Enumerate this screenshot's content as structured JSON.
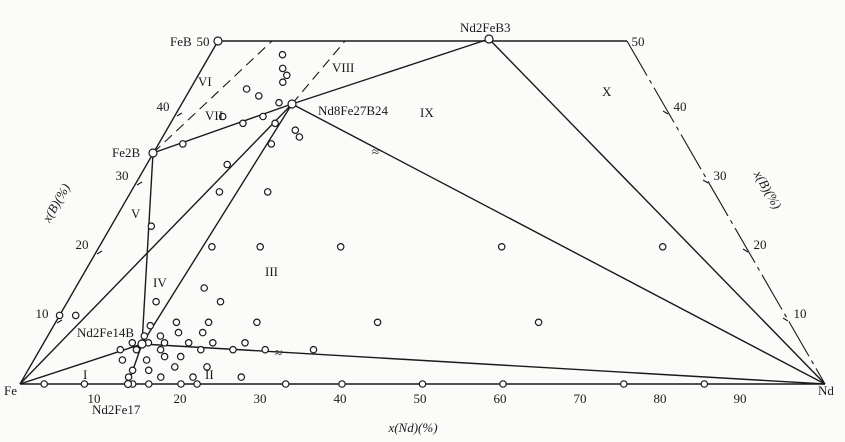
{
  "chart_data": {
    "type": "scatter",
    "title": "",
    "xlabel": "x(Nd)(%)",
    "ylabel_left": "x(B)(%)",
    "ylabel_right": "x(B)(%)",
    "x_ticks": [
      "10",
      "20",
      "30",
      "40",
      "50",
      "60",
      "70",
      "80",
      "90"
    ],
    "left_ticks": [
      "10",
      "20",
      "30",
      "40"
    ],
    "left_top_tick": "50",
    "right_ticks": [
      "10",
      "20",
      "30",
      "40"
    ],
    "right_top_tick": "50",
    "corners": {
      "fe": "Fe",
      "nd": "Nd"
    },
    "phases": {
      "feb": "FeB",
      "fe2b": "Fe2B",
      "nd2feb3": "Nd2FeB3",
      "nd8fe27b24": "Nd8Fe27B24",
      "nd2fe14b": "Nd2Fe14B",
      "nd2fe17": "Nd2Fe17"
    },
    "regions": [
      "I",
      "II",
      "III",
      "IV",
      "V",
      "VI",
      "VII",
      "VIII",
      "IX",
      "X"
    ],
    "phase_points": [
      {
        "x": 0,
        "y": 50
      },
      {
        "x": 0,
        "y": 33.3
      },
      {
        "x": 33.3,
        "y": 50
      },
      {
        "x": 13.8,
        "y": 5.9
      },
      {
        "x": 10.5,
        "y": 0
      },
      {
        "x": 14,
        "y": 41
      }
    ],
    "sample_points": [
      {
        "x": 3,
        "y": 0
      },
      {
        "x": 8,
        "y": 0
      },
      {
        "x": 14,
        "y": 0
      },
      {
        "x": 16,
        "y": 0
      },
      {
        "x": 20,
        "y": 0
      },
      {
        "x": 22,
        "y": 0
      },
      {
        "x": 33,
        "y": 0
      },
      {
        "x": 40,
        "y": 0
      },
      {
        "x": 50,
        "y": 0
      },
      {
        "x": 60,
        "y": 0
      },
      {
        "x": 75,
        "y": 0
      },
      {
        "x": 85,
        "y": 0
      },
      {
        "x": 13,
        "y": 1
      },
      {
        "x": 17,
        "y": 1
      },
      {
        "x": 21,
        "y": 1
      },
      {
        "x": 27,
        "y": 1
      },
      {
        "x": 13,
        "y": 2
      },
      {
        "x": 15,
        "y": 2
      },
      {
        "x": 18,
        "y": 2.5
      },
      {
        "x": 22,
        "y": 2.5
      },
      {
        "x": 11,
        "y": 3.5
      },
      {
        "x": 14,
        "y": 3.5
      },
      {
        "x": 16,
        "y": 4
      },
      {
        "x": 18,
        "y": 4
      },
      {
        "x": 10,
        "y": 5
      },
      {
        "x": 12,
        "y": 5
      },
      {
        "x": 15,
        "y": 5
      },
      {
        "x": 20,
        "y": 5
      },
      {
        "x": 24,
        "y": 5
      },
      {
        "x": 28,
        "y": 5
      },
      {
        "x": 34,
        "y": 5
      },
      {
        "x": 11,
        "y": 6
      },
      {
        "x": 13,
        "y": 6
      },
      {
        "x": 15,
        "y": 6
      },
      {
        "x": 18,
        "y": 6
      },
      {
        "x": 21,
        "y": 6
      },
      {
        "x": 25,
        "y": 6
      },
      {
        "x": 12,
        "y": 7
      },
      {
        "x": 14,
        "y": 7
      },
      {
        "x": 16,
        "y": 7.5
      },
      {
        "x": 19,
        "y": 7.5
      },
      {
        "x": 12,
        "y": 8.5
      },
      {
        "x": 15,
        "y": 9
      },
      {
        "x": 19,
        "y": 9
      },
      {
        "x": 25,
        "y": 9
      },
      {
        "x": 11,
        "y": 12
      },
      {
        "x": 19,
        "y": 12
      },
      {
        "x": 16,
        "y": 14
      },
      {
        "x": 14,
        "y": 20
      },
      {
        "x": 20,
        "y": 20
      },
      {
        "x": 30,
        "y": 20
      },
      {
        "x": 50,
        "y": 20
      },
      {
        "x": 70,
        "y": 20
      },
      {
        "x": 40,
        "y": 9
      },
      {
        "x": 60,
        "y": 9
      },
      {
        "x": 5,
        "y": 23
      },
      {
        "x": 3,
        "y": 35
      },
      {
        "x": 11,
        "y": 28
      },
      {
        "x": 17,
        "y": 28
      },
      {
        "x": 10,
        "y": 32
      },
      {
        "x": 14,
        "y": 35
      },
      {
        "x": 17,
        "y": 36
      },
      {
        "x": 16,
        "y": 37
      },
      {
        "x": 9,
        "y": 38
      },
      {
        "x": 11,
        "y": 39
      },
      {
        "x": 12,
        "y": 41
      },
      {
        "x": 6,
        "y": 39
      },
      {
        "x": 7,
        "y": 43
      },
      {
        "x": 11,
        "y": 44
      },
      {
        "x": 11,
        "y": 45
      },
      {
        "x": 10,
        "y": 46
      },
      {
        "x": 9,
        "y": 48
      },
      {
        "x": 0,
        "y": 10
      },
      {
        "x": 2,
        "y": 10
      },
      {
        "x": 13,
        "y": 38
      },
      {
        "x": 9,
        "y": 42
      }
    ]
  }
}
